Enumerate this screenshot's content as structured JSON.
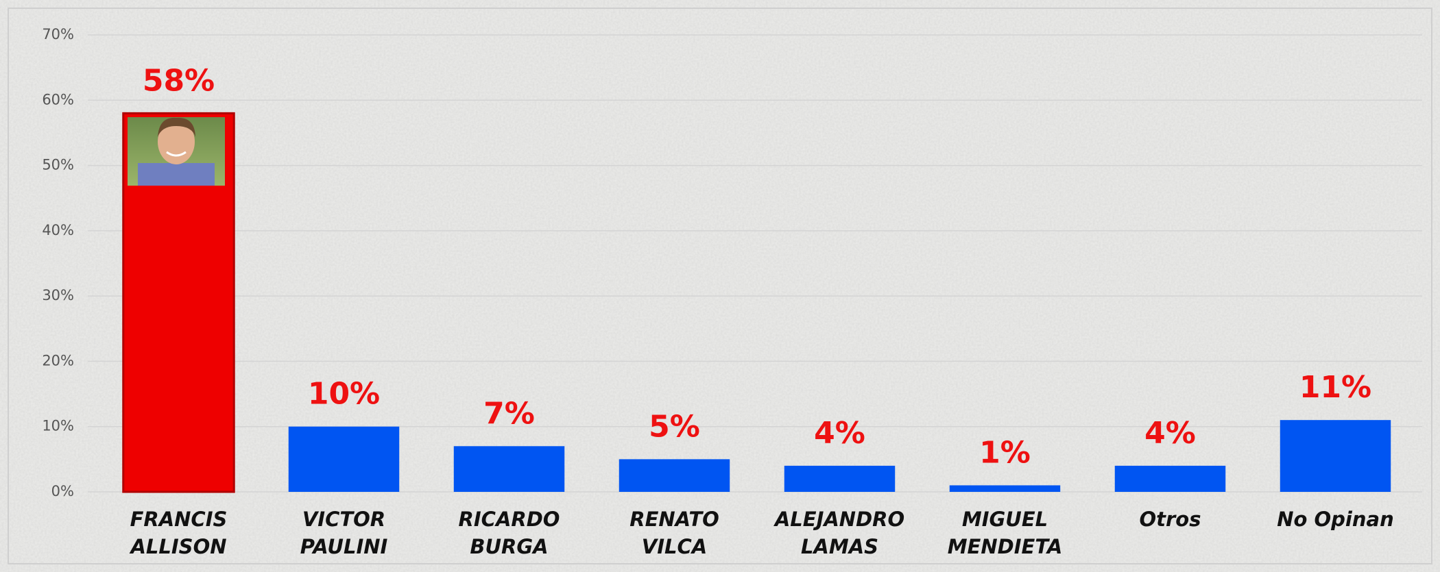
{
  "chart_data": {
    "type": "bar",
    "categories": [
      [
        "FRANCIS",
        "ALLISON"
      ],
      [
        "VICTOR",
        "PAULINI"
      ],
      [
        "RICARDO",
        "BURGA"
      ],
      [
        "RENATO",
        "VILCA"
      ],
      [
        "ALEJANDRO",
        "LAMAS"
      ],
      [
        "MIGUEL",
        "MENDIETA"
      ],
      [
        "Otros"
      ],
      [
        "No Opinan"
      ]
    ],
    "values": [
      58,
      10,
      7,
      5,
      4,
      1,
      4,
      11
    ],
    "value_labels": [
      "58%",
      "10%",
      "7%",
      "5%",
      "4%",
      "1%",
      "4%",
      "11%"
    ],
    "colors": [
      "#ee0000",
      "#0055f2",
      "#0055f2",
      "#0055f2",
      "#0055f2",
      "#0055f2",
      "#0055f2",
      "#0055f2"
    ],
    "ylim": [
      0,
      70
    ],
    "yticks": [
      {
        "value": 0,
        "label": "0%"
      },
      {
        "value": 10,
        "label": "10%"
      },
      {
        "value": 20,
        "label": "20%"
      },
      {
        "value": 30,
        "label": "30%"
      },
      {
        "value": 40,
        "label": "40%"
      },
      {
        "value": 50,
        "label": "50%"
      },
      {
        "value": 60,
        "label": "60%"
      },
      {
        "value": 70,
        "label": "70%"
      }
    ],
    "grid": true
  }
}
